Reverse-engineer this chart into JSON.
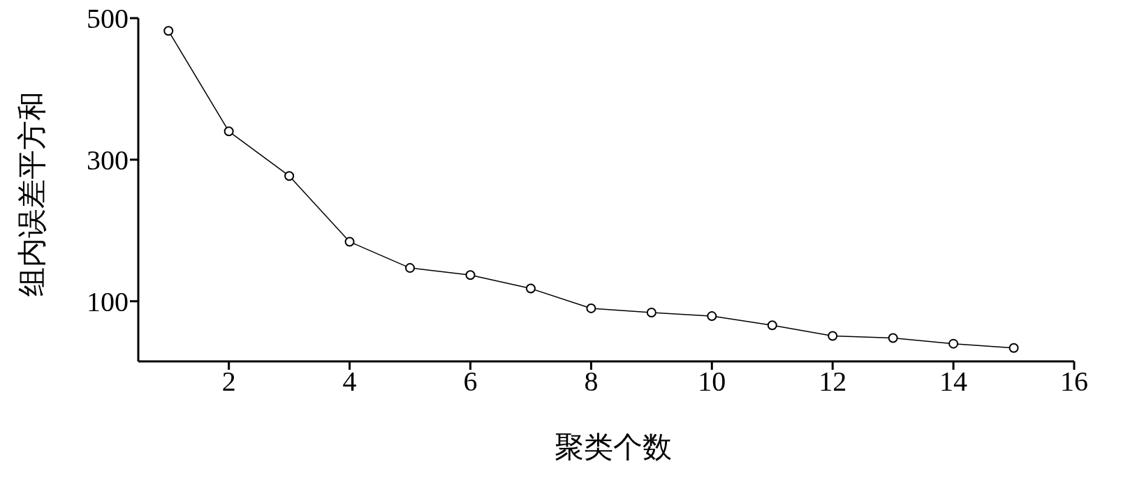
{
  "chart_data": {
    "type": "line",
    "xlabel": "聚类个数",
    "ylabel": "组内误差平方和",
    "x": [
      1,
      2,
      3,
      4,
      5,
      6,
      7,
      8,
      9,
      10,
      11,
      12,
      13,
      14,
      15
    ],
    "series": [
      {
        "color": "#000000",
        "values": [
          482,
          340,
          277,
          184,
          147,
          137,
          118,
          90,
          84,
          79,
          66,
          51,
          48,
          40,
          34
        ]
      }
    ],
    "xlim": [
      0.5,
      16
    ],
    "xticks": [
      2,
      4,
      6,
      8,
      10,
      12,
      14,
      16
    ],
    "ylim": [
      15,
      500
    ],
    "yticks": [
      100,
      300,
      500
    ],
    "grid": false,
    "legend": false,
    "marker": "circle",
    "line_style": "solid"
  }
}
